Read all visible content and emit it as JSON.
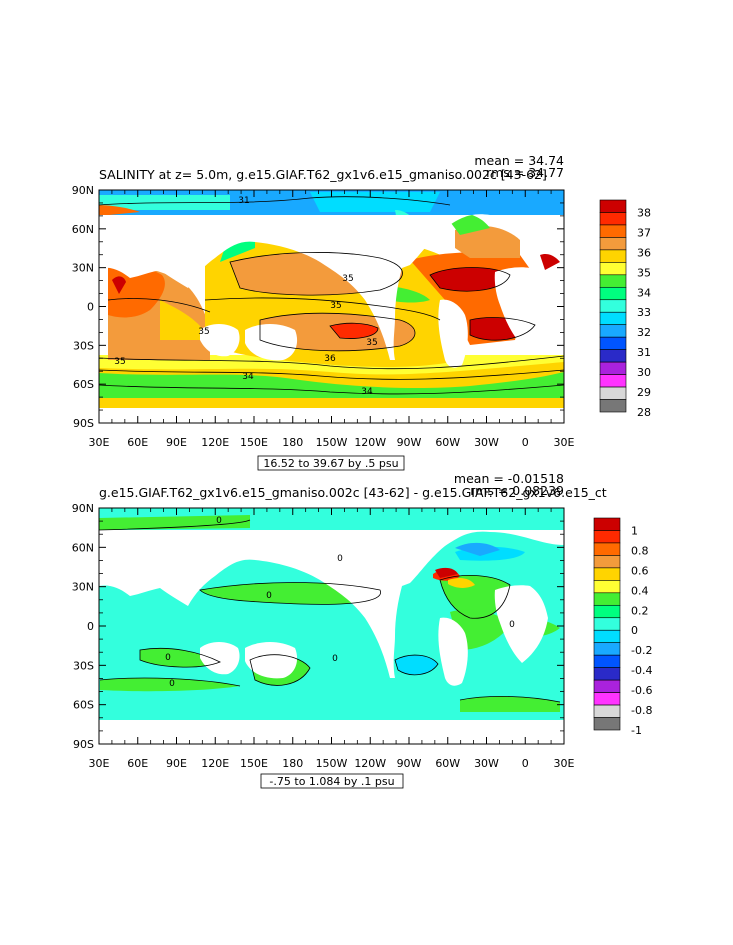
{
  "chart_data": [
    {
      "type": "heatmap",
      "title": "SALINITY at z=    5.0m, g.e15.GIAF.T62_gx1v6.e15_gmaniso.002c [43-62]",
      "stats": {
        "mean": "mean = 34.74",
        "rms": "rms = 34.77"
      },
      "range_note": "16.52 to 39.67 by .5 psu",
      "x_ticks": [
        "30E",
        "60E",
        "90E",
        "120E",
        "150E",
        "180",
        "150W",
        "120W",
        "90W",
        "60W",
        "30W",
        "0",
        "30E"
      ],
      "y_ticks": [
        "90N",
        "60N",
        "30N",
        "0",
        "30S",
        "60S",
        "90S"
      ],
      "xlim": [
        30,
        390
      ],
      "ylim": [
        -90,
        90
      ],
      "colorbar": {
        "labels": [
          "38",
          "37",
          "36",
          "35",
          "34",
          "33",
          "32",
          "31",
          "30",
          "29",
          "28"
        ],
        "colors": [
          "#cc0000",
          "#ff2a00",
          "#ff6a00",
          "#f39b3c",
          "#ffd400",
          "#ffff33",
          "#44ee33",
          "#00ff7f",
          "#33ffdd",
          "#00ddff",
          "#19a9ff",
          "#0055ff",
          "#2a2ac8",
          "#aa22dd",
          "#ff33ff",
          "#d8d8d8",
          "#777777"
        ]
      },
      "contour_labels": [
        "31",
        "35",
        "35",
        "35",
        "35",
        "36",
        "35",
        "34",
        "34"
      ]
    },
    {
      "type": "heatmap",
      "title": "g.e15.GIAF.T62_gx1v6.e15_gmaniso.002c [43-62] - g.e15.GIAF.T62_gx1v6.e15_ct",
      "stats": {
        "mean": "mean = -0.01518",
        "rms": "rms = 0.08239"
      },
      "range_note": "-.75 to 1.084 by .1 psu",
      "x_ticks": [
        "30E",
        "60E",
        "90E",
        "120E",
        "150E",
        "180",
        "150W",
        "120W",
        "90W",
        "60W",
        "30W",
        "0",
        "30E"
      ],
      "y_ticks": [
        "90N",
        "60N",
        "30N",
        "0",
        "30S",
        "60S",
        "90S"
      ],
      "xlim": [
        30,
        390
      ],
      "ylim": [
        -90,
        90
      ],
      "colorbar": {
        "labels": [
          "1",
          "0.8",
          "0.6",
          "0.4",
          "0.2",
          "0",
          "-0.2",
          "-0.4",
          "-0.6",
          "-0.8",
          "-1"
        ],
        "colors": [
          "#cc0000",
          "#ff2a00",
          "#ff6a00",
          "#f39b3c",
          "#ffd400",
          "#ffff33",
          "#44ee33",
          "#00ff7f",
          "#33ffdd",
          "#00ddff",
          "#19a9ff",
          "#0055ff",
          "#2a2ac8",
          "#aa22dd",
          "#ff33ff",
          "#d8d8d8",
          "#777777"
        ]
      },
      "contour_labels": [
        "0",
        "0",
        "0",
        "0",
        "0",
        "0",
        "0"
      ]
    }
  ]
}
